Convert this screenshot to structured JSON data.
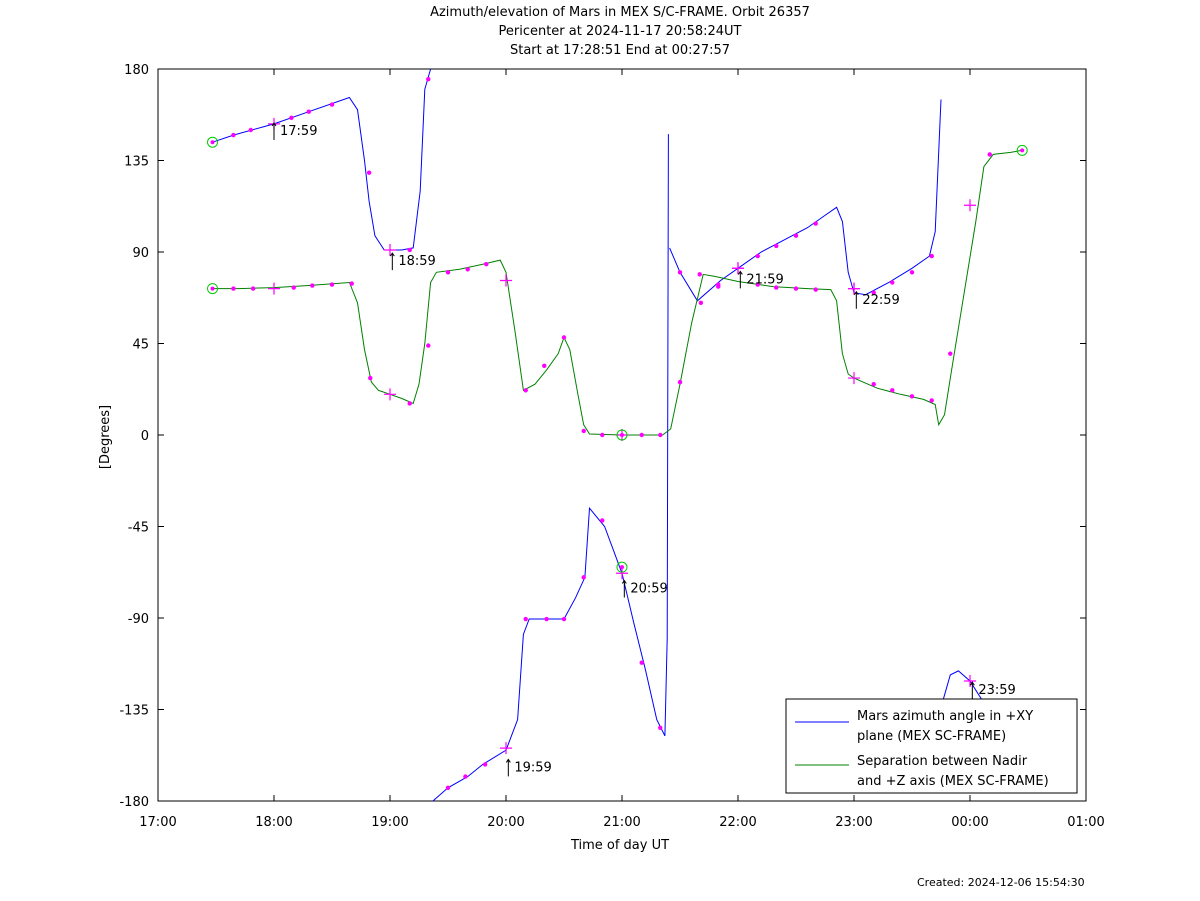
{
  "header": {
    "title_line1": "Azimuth/elevation of Mars in MEX S/C-FRAME.  Orbit 26357",
    "title_line2": "Pericenter at 2024-11-17 20:58:24UT",
    "title_line3": "Start at 17:28:51 End at 00:27:57"
  },
  "footer": {
    "created": "Created: 2024-12-06 15:54:30"
  },
  "colors": {
    "azimuth": "#0000ff",
    "separation": "#008000",
    "marker": "#ff00ff",
    "circle": "#00cc00"
  },
  "chart_data": {
    "type": "line",
    "xlabel": "Time of day UT",
    "ylabel": "[Degrees]",
    "xlim": [
      17.0,
      25.0
    ],
    "ylim": [
      -180,
      180
    ],
    "x_ticks": [
      17,
      18,
      19,
      20,
      21,
      22,
      23,
      24,
      25
    ],
    "x_tick_labels": [
      "17:00",
      "18:00",
      "19:00",
      "20:00",
      "21:00",
      "22:00",
      "23:00",
      "00:00",
      "01:00"
    ],
    "y_ticks": [
      180,
      135,
      90,
      45,
      0,
      -45,
      -90,
      -135,
      -180
    ],
    "legend": {
      "position": "bottom-right"
    },
    "series": [
      {
        "name": "Mars azimuth angle in +XY plane (MEX SC-FRAME)",
        "legend_line1": "Mars azimuth angle in +XY",
        "legend_line2": "plane (MEX SC-FRAME)",
        "color": "#0000ff",
        "segments": [
          [
            [
              17.47,
              144
            ],
            [
              17.65,
              147.5
            ],
            [
              18.0,
              153
            ],
            [
              18.3,
              159
            ],
            [
              18.65,
              166
            ],
            [
              18.72,
              160
            ],
            [
              18.78,
              135
            ],
            [
              18.82,
              115
            ],
            [
              18.87,
              98
            ],
            [
              18.95,
              91
            ],
            [
              19.1,
              91
            ],
            [
              19.2,
              92
            ],
            [
              19.26,
              120
            ],
            [
              19.3,
              170
            ],
            [
              19.35,
              180
            ]
          ],
          [
            [
              19.37,
              -180
            ],
            [
              19.5,
              -173.5
            ],
            [
              19.67,
              -168
            ],
            [
              19.8,
              -162
            ],
            [
              20.0,
              -155
            ],
            [
              20.1,
              -140
            ],
            [
              20.15,
              -98
            ],
            [
              20.2,
              -90.5
            ],
            [
              20.5,
              -90.5
            ],
            [
              20.6,
              -80
            ],
            [
              20.68,
              -70
            ],
            [
              20.72,
              -36
            ],
            [
              20.85,
              -45
            ],
            [
              21.0,
              -68
            ],
            [
              21.1,
              -92
            ],
            [
              21.2,
              -115
            ],
            [
              21.3,
              -140
            ],
            [
              21.37,
              -148
            ],
            [
              21.39,
              -100
            ],
            [
              21.4,
              148
            ]
          ],
          [
            [
              21.41,
              92
            ],
            [
              21.5,
              80
            ],
            [
              21.65,
              66
            ],
            [
              21.85,
              76
            ],
            [
              22.0,
              82
            ],
            [
              22.2,
              90
            ],
            [
              22.4,
              96
            ],
            [
              22.6,
              102
            ],
            [
              22.75,
              108
            ],
            [
              22.85,
              112
            ],
            [
              22.9,
              105
            ],
            [
              22.95,
              80
            ],
            [
              23.0,
              70
            ],
            [
              23.1,
              69
            ],
            [
              23.3,
              75
            ],
            [
              23.5,
              82
            ],
            [
              23.65,
              88
            ],
            [
              23.7,
              100
            ],
            [
              23.75,
              165
            ]
          ],
          [
            [
              23.77,
              -130
            ],
            [
              23.83,
              -118
            ],
            [
              23.9,
              -116
            ],
            [
              24.0,
              -121
            ],
            [
              24.1,
              -130
            ]
          ]
        ],
        "markers": [
          [
            17.65,
            147.5
          ],
          [
            17.8,
            150
          ],
          [
            18.15,
            156
          ],
          [
            18.3,
            159
          ],
          [
            18.5,
            162.5
          ],
          [
            18.82,
            129
          ],
          [
            19.17,
            91
          ],
          [
            19.33,
            175
          ],
          [
            19.5,
            -173.5
          ],
          [
            19.65,
            -168
          ],
          [
            19.82,
            -162
          ],
          [
            20.17,
            -90.5
          ],
          [
            20.35,
            -90.5
          ],
          [
            20.5,
            -90.5
          ],
          [
            20.67,
            -70
          ],
          [
            20.83,
            -42
          ],
          [
            21.17,
            -112
          ],
          [
            21.33,
            -144
          ],
          [
            21.5,
            80
          ],
          [
            21.68,
            65
          ],
          [
            21.83,
            73
          ],
          [
            22.17,
            88
          ],
          [
            22.33,
            93
          ],
          [
            22.5,
            98
          ],
          [
            22.67,
            104
          ],
          [
            23.17,
            70
          ],
          [
            23.33,
            75
          ],
          [
            23.5,
            80
          ],
          [
            23.67,
            88
          ]
        ],
        "crosses": [
          [
            18.0,
            153
          ],
          [
            19.0,
            91
          ],
          [
            20.0,
            -154
          ],
          [
            21.0,
            -68
          ],
          [
            22.0,
            82
          ],
          [
            23.0,
            72
          ],
          [
            24.0,
            -121
          ]
        ],
        "circles": [
          [
            21.0,
            -65
          ]
        ]
      },
      {
        "name": "Separation between Nadir and +Z axis (MEX SC-FRAME)",
        "legend_line1": "Separation between Nadir",
        "legend_line2": "and +Z axis (MEX SC-FRAME)",
        "color": "#008000",
        "segments": [
          [
            [
              17.47,
              72
            ],
            [
              17.7,
              72
            ],
            [
              18.0,
              72.5
            ],
            [
              18.3,
              73.5
            ],
            [
              18.65,
              75
            ],
            [
              18.72,
              65
            ],
            [
              18.78,
              42
            ],
            [
              18.84,
              26
            ],
            [
              18.9,
              22
            ],
            [
              19.0,
              20
            ],
            [
              19.1,
              18
            ],
            [
              19.2,
              15.5
            ],
            [
              19.25,
              25
            ],
            [
              19.3,
              45
            ],
            [
              19.35,
              75
            ],
            [
              19.4,
              80
            ],
            [
              19.6,
              81.5
            ],
            [
              19.8,
              84
            ],
            [
              19.95,
              86
            ],
            [
              20.0,
              80
            ],
            [
              20.08,
              50
            ],
            [
              20.15,
              22
            ],
            [
              20.25,
              25
            ],
            [
              20.35,
              32
            ],
            [
              20.45,
              40
            ],
            [
              20.5,
              48
            ],
            [
              20.55,
              42
            ],
            [
              20.62,
              20
            ],
            [
              20.67,
              5
            ],
            [
              20.72,
              0.5
            ],
            [
              21.0,
              0
            ],
            [
              21.35,
              0
            ],
            [
              21.42,
              3
            ],
            [
              21.5,
              25
            ],
            [
              21.6,
              55
            ],
            [
              21.7,
              79
            ],
            [
              21.8,
              78
            ],
            [
              22.0,
              75.5
            ],
            [
              22.3,
              73
            ],
            [
              22.6,
              72
            ],
            [
              22.8,
              71.5
            ],
            [
              22.85,
              66
            ],
            [
              22.9,
              40
            ],
            [
              22.95,
              30
            ],
            [
              23.0,
              28
            ],
            [
              23.2,
              23
            ],
            [
              23.4,
              20
            ],
            [
              23.6,
              17.5
            ],
            [
              23.7,
              15
            ],
            [
              23.73,
              5
            ],
            [
              23.78,
              10
            ],
            [
              23.85,
              35
            ],
            [
              23.95,
              70
            ],
            [
              24.05,
              105
            ],
            [
              24.12,
              132
            ],
            [
              24.2,
              138
            ],
            [
              24.35,
              139
            ],
            [
              24.45,
              140
            ]
          ]
        ],
        "markers": [
          [
            17.65,
            72
          ],
          [
            17.82,
            72
          ],
          [
            18.17,
            72.5
          ],
          [
            18.33,
            73.5
          ],
          [
            18.5,
            74
          ],
          [
            18.67,
            74.5
          ],
          [
            18.83,
            28
          ],
          [
            19.17,
            15.5
          ],
          [
            19.33,
            44
          ],
          [
            19.5,
            80
          ],
          [
            19.67,
            81.5
          ],
          [
            19.83,
            84
          ],
          [
            20.17,
            22
          ],
          [
            20.33,
            34
          ],
          [
            20.5,
            48
          ],
          [
            20.67,
            2
          ],
          [
            20.83,
            0
          ],
          [
            21.17,
            0
          ],
          [
            21.33,
            0
          ],
          [
            21.5,
            26
          ],
          [
            21.67,
            79
          ],
          [
            21.83,
            74
          ],
          [
            22.17,
            74
          ],
          [
            22.33,
            72.5
          ],
          [
            22.5,
            72
          ],
          [
            22.67,
            71.5
          ],
          [
            23.17,
            25
          ],
          [
            23.33,
            22
          ],
          [
            23.5,
            19
          ],
          [
            23.67,
            17
          ],
          [
            23.83,
            40
          ],
          [
            24.17,
            138
          ]
        ],
        "crosses": [
          [
            18.0,
            72
          ],
          [
            19.0,
            20
          ],
          [
            20.0,
            76
          ],
          [
            21.0,
            0
          ],
          [
            22.0,
            82
          ],
          [
            23.0,
            72
          ],
          [
            23.0,
            28
          ],
          [
            24.0,
            113
          ]
        ],
        "circles": [
          [
            17.47,
            144
          ],
          [
            17.47,
            72
          ],
          [
            21.0,
            0
          ],
          [
            24.45,
            140
          ]
        ]
      }
    ],
    "annotations": [
      {
        "x": 18.0,
        "y": 150,
        "text": "17:59"
      },
      {
        "x": 19.02,
        "y": 86,
        "text": "18:59"
      },
      {
        "x": 20.02,
        "y": -163,
        "text": "19:59"
      },
      {
        "x": 21.02,
        "y": -75,
        "text": "20:59"
      },
      {
        "x": 22.02,
        "y": 77,
        "text": "21:59"
      },
      {
        "x": 23.02,
        "y": 67,
        "text": "22:59"
      },
      {
        "x": 24.02,
        "y": -125,
        "text": "23:59"
      }
    ]
  }
}
